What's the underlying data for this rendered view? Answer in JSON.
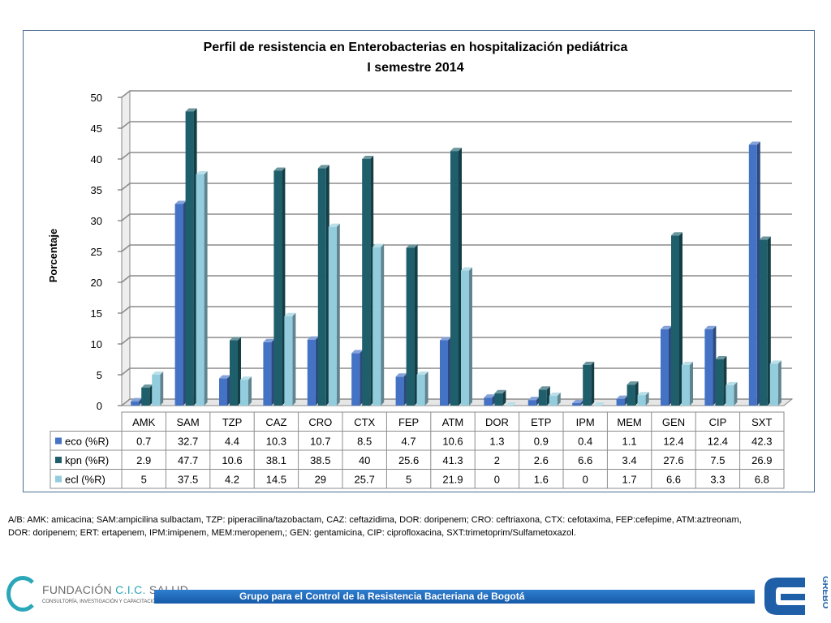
{
  "chart_data": {
    "type": "bar",
    "title": "Perfil de resistencia en Enterobacterias en hospitalización pediátrica",
    "subtitle": "I semestre 2014",
    "xlabel": "",
    "ylabel": "Porcentaje",
    "ylim": [
      0,
      50
    ],
    "yticks": [
      0,
      5,
      10,
      15,
      20,
      25,
      30,
      35,
      40,
      45,
      50
    ],
    "grid": true,
    "legend": "data-table",
    "categories": [
      "AMK",
      "SAM",
      "TZP",
      "CAZ",
      "CRO",
      "CTX",
      "FEP",
      "ATM",
      "DOR",
      "ETP",
      "IPM",
      "MEM",
      "GEN",
      "CIP",
      "SXT"
    ],
    "series": [
      {
        "name": "eco (%R)",
        "color": "#4472c4",
        "values": [
          0.7,
          32.7,
          4.4,
          10.3,
          10.7,
          8.5,
          4.7,
          10.6,
          1.3,
          0.9,
          0.4,
          1.1,
          12.4,
          12.4,
          42.3
        ]
      },
      {
        "name": "kpn (%R)",
        "color": "#1f5f6b",
        "values": [
          2.9,
          47.7,
          10.6,
          38.1,
          38.5,
          40,
          25.6,
          41.3,
          2,
          2.6,
          6.6,
          3.4,
          27.6,
          7.5,
          26.9
        ]
      },
      {
        "name": "ecl (%R)",
        "color": "#93cddd",
        "values": [
          5,
          37.5,
          4.2,
          14.5,
          29,
          25.7,
          5,
          21.9,
          0,
          1.6,
          0,
          1.7,
          6.6,
          3.3,
          6.8
        ]
      }
    ]
  },
  "abbreviations": {
    "line1": "A/B: AMK: amicacina; SAM:ampicilina sulbactam, TZP: piperacilina/tazobactam, CAZ: ceftazidima, DOR: doripenem; CRO: ceftriaxona, CTX: cefotaxima, FEP:cefepime,   ATM:aztreonam,",
    "line2": "DOR: doripenem; ERT: ertapenem, IPM:imipenem, MEM:meropenem,; GEN: gentamicina, CIP: ciprofloxacina, SXT:trimetoprim/Sulfametoxazol."
  },
  "footer": {
    "banner": "Grupo para el Control de la Resistencia Bacteriana de Bogotá",
    "logo_left": {
      "name_prefix": "FUNDACIÓN",
      "name_cic": "C.I.C.",
      "name_suffix": "SALUD",
      "tagline": "CONSULTORÍA, INVESTIGACIÓN Y CAPACITACIÓN"
    },
    "logo_right": {
      "text": "GREBO",
      "color": "#1f5fa8"
    }
  }
}
